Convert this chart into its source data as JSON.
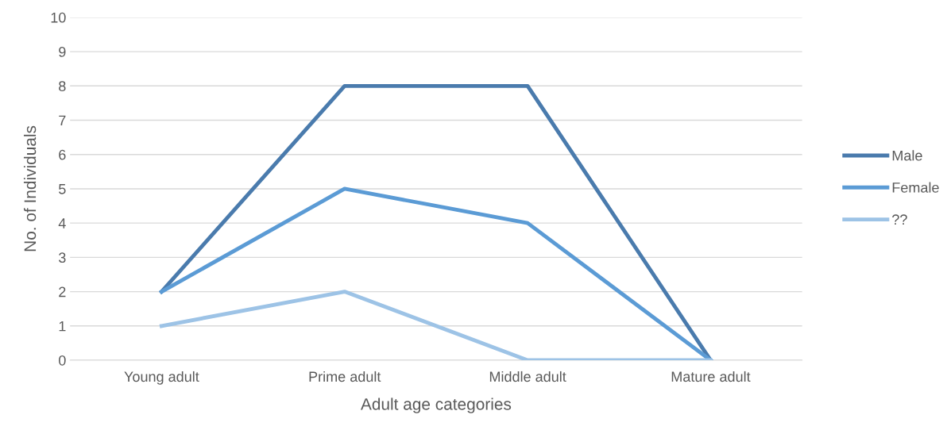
{
  "chart_data": {
    "type": "line",
    "xlabel": "Adult age categories",
    "ylabel": "No. of Individuals",
    "categories": [
      "Young adult",
      "Prime adult",
      "Middle adult",
      "Mature adult"
    ],
    "series": [
      {
        "name": "Male",
        "color": "#4a7bad",
        "values": [
          2,
          8,
          8,
          0
        ]
      },
      {
        "name": "Female",
        "color": "#5b9bd5",
        "values": [
          2,
          5,
          4,
          0
        ]
      },
      {
        "name": "??",
        "color": "#9dc3e6",
        "values": [
          1,
          2,
          0,
          0
        ]
      }
    ],
    "ylim": [
      0,
      10
    ],
    "yticks": [
      0,
      1,
      2,
      3,
      4,
      5,
      6,
      7,
      8,
      9,
      10
    ],
    "grid": "y",
    "legend": "right",
    "marker": "none",
    "line_style": "solid"
  }
}
